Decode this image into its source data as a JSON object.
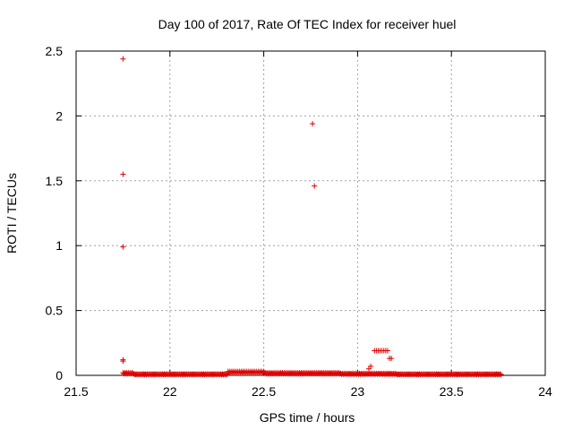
{
  "chart_data": {
    "type": "scatter",
    "title": "Day 100 of 2017, Rate Of TEC Index for receiver huel",
    "xlabel": "GPS time / hours",
    "ylabel": "ROTI / TECUs",
    "xlim": [
      21.5,
      24
    ],
    "ylim": [
      0,
      2.5
    ],
    "xticks": [
      "21.5",
      "22",
      "22.5",
      "23",
      "23.5",
      "24"
    ],
    "yticks": [
      "0",
      "0.5",
      "1",
      "1.5",
      "2",
      "2.5"
    ],
    "grid": true,
    "marker": "plus",
    "marker_color": "#e00000",
    "outliers": [
      {
        "x": 21.75,
        "y": 2.44
      },
      {
        "x": 21.75,
        "y": 1.55
      },
      {
        "x": 21.75,
        "y": 0.99
      },
      {
        "x": 21.75,
        "y": 0.12
      },
      {
        "x": 21.75,
        "y": 0.11
      },
      {
        "x": 22.76,
        "y": 1.94
      },
      {
        "x": 22.77,
        "y": 1.46
      },
      {
        "x": 23.06,
        "y": 0.05
      },
      {
        "x": 23.07,
        "y": 0.07
      },
      {
        "x": 23.09,
        "y": 0.19
      },
      {
        "x": 23.1,
        "y": 0.19
      },
      {
        "x": 23.11,
        "y": 0.19
      },
      {
        "x": 23.12,
        "y": 0.19
      },
      {
        "x": 23.13,
        "y": 0.19
      },
      {
        "x": 23.14,
        "y": 0.19
      },
      {
        "x": 23.15,
        "y": 0.19
      },
      {
        "x": 23.16,
        "y": 0.19
      },
      {
        "x": 23.17,
        "y": 0.13
      },
      {
        "x": 23.18,
        "y": 0.13
      }
    ],
    "baseline_series": {
      "x_start": 21.75,
      "x_end": 23.76,
      "x_step": 0.01,
      "segments": [
        {
          "x_from": 21.75,
          "x_to": 21.8,
          "y": 0.02
        },
        {
          "x_from": 21.8,
          "x_to": 22.3,
          "y": 0.01
        },
        {
          "x_from": 22.3,
          "x_to": 22.5,
          "y": 0.03
        },
        {
          "x_from": 22.5,
          "x_to": 22.9,
          "y": 0.02
        },
        {
          "x_from": 22.9,
          "x_to": 23.2,
          "y": 0.015
        },
        {
          "x_from": 23.2,
          "x_to": 23.76,
          "y": 0.01
        }
      ]
    }
  }
}
